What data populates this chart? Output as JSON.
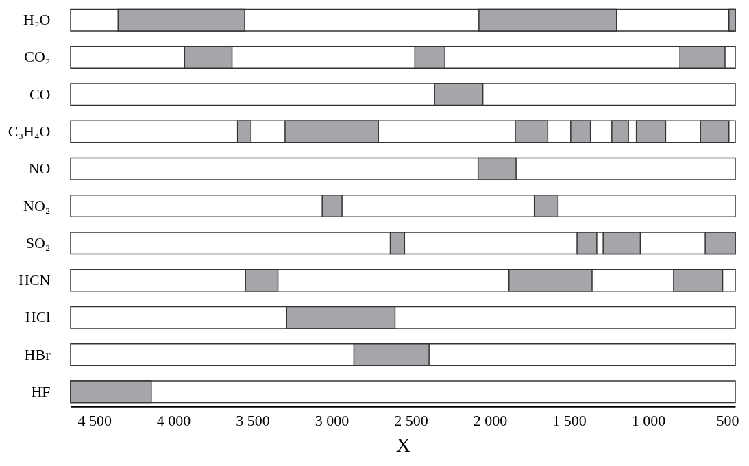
{
  "chart_data": {
    "type": "bar",
    "orientation": "horizontal",
    "xlabel": "X",
    "categories": [
      "H₂O",
      "CO₂",
      "CO",
      "C₃H₄O",
      "NO",
      "NO₂",
      "SO₂",
      "HCN",
      "HCl",
      "HBr",
      "HF"
    ],
    "xlim": [
      4650,
      450
    ],
    "xticks": [
      {
        "value": 4500,
        "label": "4 500"
      },
      {
        "value": 4000,
        "label": "4 000"
      },
      {
        "value": 3500,
        "label": "3 500"
      },
      {
        "value": 3000,
        "label": "3 000"
      },
      {
        "value": 2500,
        "label": "2 500"
      },
      {
        "value": 2000,
        "label": "2 000"
      },
      {
        "value": 1500,
        "label": "1 500"
      },
      {
        "value": 1000,
        "label": "1 000"
      },
      500
    ],
    "grid": false,
    "series": [
      {
        "color": "#ffffff",
        "base": [
          450,
          450,
          450,
          450,
          450,
          450,
          450,
          450,
          450,
          450,
          450
        ],
        "values": [
          4200,
          4200,
          4200,
          4200,
          4200,
          4200,
          4200,
          4200,
          4200,
          4200,
          4200
        ]
      },
      {
        "color": "#a5a6aa",
        "base": [
          3550,
          3630,
          2045,
          3510,
          1835,
          2935,
          2540,
          3340,
          2600,
          2385,
          4140
        ],
        "values": [
          800,
          300,
          305,
          85,
          240,
          125,
          90,
          205,
          685,
          475,
          510
        ]
      },
      {
        "color": "#a5a6aa",
        "base": [
          1200,
          2285,
          null,
          2705,
          null,
          1570,
          1325,
          1355,
          null,
          null,
          null
        ],
        "values": [
          870,
          190,
          null,
          590,
          null,
          150,
          125,
          525,
          null,
          null,
          null
        ]
      },
      {
        "color": "#a5a6aa",
        "base": [
          450,
          515,
          null,
          1635,
          null,
          null,
          1050,
          530,
          null,
          null,
          null
        ],
        "values": [
          40,
          285,
          null,
          205,
          null,
          null,
          235,
          310,
          null,
          null,
          null
        ]
      },
      {
        "color": "#a5a6aa",
        "base": [
          null,
          null,
          null,
          1365,
          null,
          null,
          450,
          null,
          null,
          null,
          null
        ],
        "values": [
          null,
          null,
          null,
          125,
          null,
          null,
          190,
          null,
          null,
          null,
          null
        ]
      },
      {
        "color": "#a5a6aa",
        "base": [
          null,
          null,
          null,
          1125,
          null,
          null,
          null,
          null,
          null,
          null,
          null
        ],
        "values": [
          null,
          null,
          null,
          105,
          null,
          null,
          null,
          null,
          null,
          null,
          null
        ]
      },
      {
        "color": "#a5a6aa",
        "base": [
          null,
          null,
          null,
          890,
          null,
          null,
          null,
          null,
          null,
          null,
          null
        ],
        "values": [
          null,
          null,
          null,
          185,
          null,
          null,
          null,
          null,
          null,
          null,
          null
        ]
      },
      {
        "color": "#a5a6aa",
        "base": [
          null,
          null,
          null,
          490,
          null,
          null,
          null,
          null,
          null,
          null,
          null
        ],
        "values": [
          null,
          null,
          null,
          180,
          null,
          null,
          null,
          null,
          null,
          null,
          null
        ]
      }
    ]
  }
}
